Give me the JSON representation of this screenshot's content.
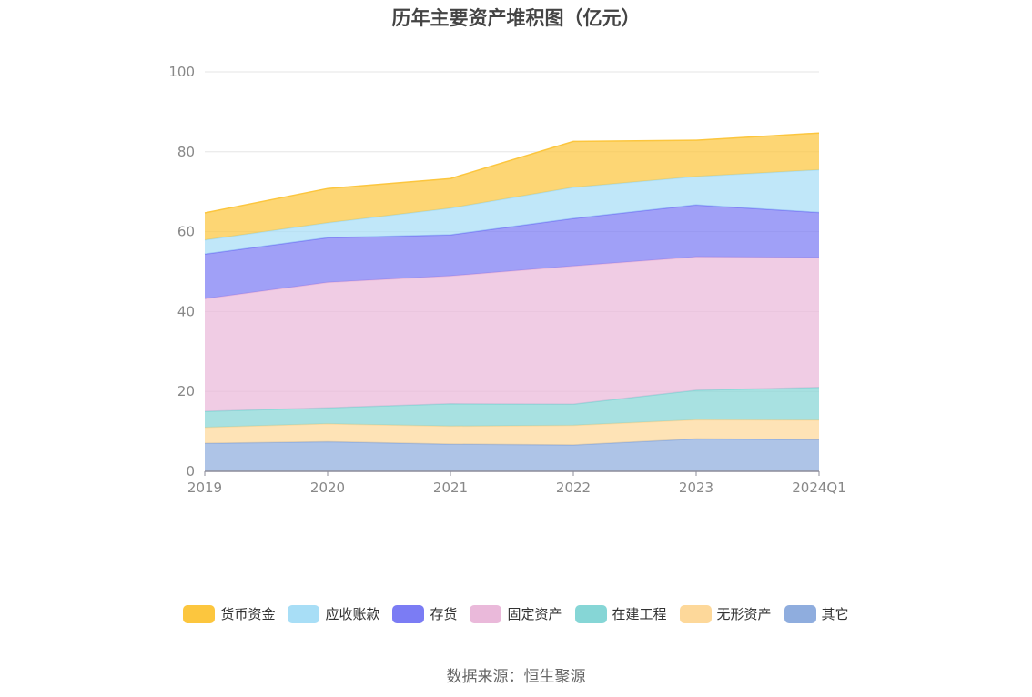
{
  "chart_data": {
    "type": "area",
    "stacked": true,
    "title": "历年主要资产堆积图（亿元）",
    "categories": [
      "2019",
      "2020",
      "2021",
      "2022",
      "2023",
      "2024Q1"
    ],
    "ylim": [
      0,
      100
    ],
    "yticks": [
      0,
      20,
      40,
      60,
      80,
      100
    ],
    "grid": true,
    "legend_position": "bottom",
    "series": [
      {
        "name": "其它",
        "color": "#8fadde",
        "values": [
          7.0,
          7.4,
          6.8,
          6.6,
          8.1,
          7.9
        ]
      },
      {
        "name": "无形资产",
        "color": "#fdd89a",
        "values": [
          4.0,
          4.5,
          4.5,
          4.9,
          4.8,
          4.9
        ]
      },
      {
        "name": "在建工程",
        "color": "#86d6d6",
        "values": [
          4.0,
          4.0,
          5.6,
          5.3,
          7.4,
          8.2
        ]
      },
      {
        "name": "固定资产",
        "color": "#eab9da",
        "values": [
          28.2,
          31.4,
          32.0,
          34.6,
          33.4,
          32.5
        ]
      },
      {
        "name": "存货",
        "color": "#7b7cf4",
        "values": [
          11.2,
          11.2,
          10.3,
          11.9,
          13.0,
          11.3
        ]
      },
      {
        "name": "应收账款",
        "color": "#a8def6",
        "values": [
          3.5,
          3.7,
          6.7,
          7.8,
          7.1,
          10.7
        ]
      },
      {
        "name": "货币资金",
        "color": "#fcc63e",
        "values": [
          6.8,
          8.6,
          7.4,
          11.5,
          9.1,
          9.2
        ]
      }
    ],
    "legend_order": [
      "货币资金",
      "应收账款",
      "存货",
      "固定资产",
      "在建工程",
      "无形资产",
      "其它"
    ]
  },
  "source_text": "数据来源：恒生聚源"
}
